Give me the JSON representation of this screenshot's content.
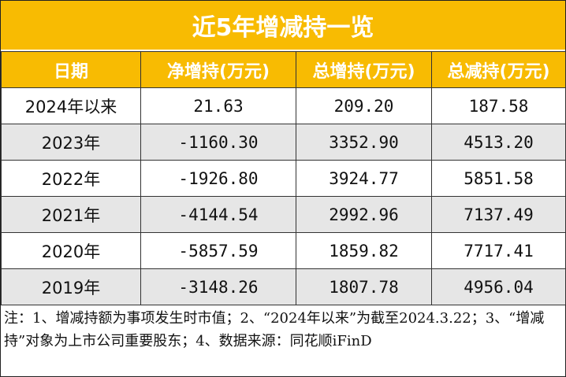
{
  "title": "近5年增减持一览",
  "chart_data": {
    "type": "table",
    "title": "近5年增减持一览",
    "columns": [
      "日期",
      "净增持(万元)",
      "总增持(万元)",
      "总减持(万元)"
    ],
    "rows": [
      [
        "2024年以来",
        "21.63",
        "209.20",
        "187.58"
      ],
      [
        "2023年",
        "-1160.30",
        "3352.90",
        "4513.20"
      ],
      [
        "2022年",
        "-1926.80",
        "3924.77",
        "5851.58"
      ],
      [
        "2021年",
        "-4144.54",
        "2992.96",
        "7137.49"
      ],
      [
        "2020年",
        "-5857.59",
        "1859.82",
        "7717.41"
      ],
      [
        "2019年",
        "-3148.26",
        "1807.78",
        "4956.04"
      ]
    ]
  },
  "note": "注：1、增减持额为事项发生时市值；2、“2024年以来”为截至2024.3.22；3、“增减持”对象为上市公司重要股东；4、数据来源：同花顺iFinD",
  "colors": {
    "header": "#f8bb02",
    "stripe": "#e6e6e6"
  }
}
